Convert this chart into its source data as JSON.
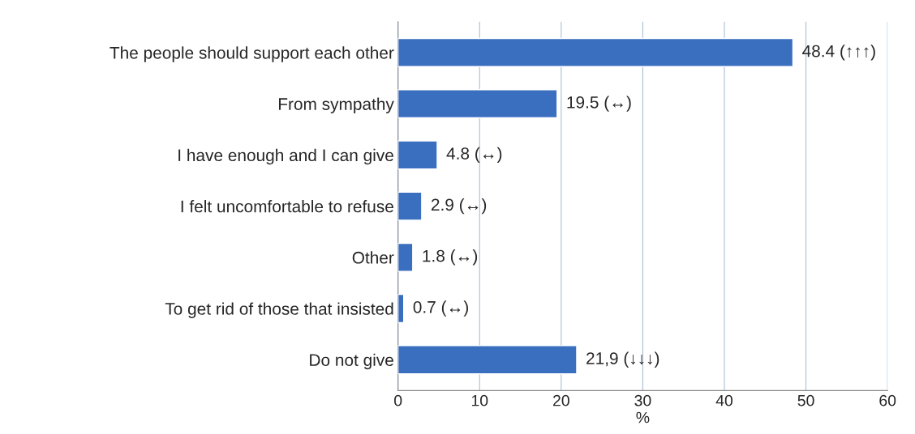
{
  "chart_data": {
    "type": "bar",
    "orientation": "horizontal",
    "categories": [
      "The people should support each other",
      "From sympathy",
      "I have enough and I can give",
      "I felt uncomfortable to refuse",
      "Other",
      "To get rid of those that insisted",
      "Do not give"
    ],
    "values": [
      48.4,
      19.5,
      4.8,
      2.9,
      1.8,
      0.7,
      21.9
    ],
    "value_labels": [
      "48.4 (↑↑↑)",
      "19.5 (↔)",
      "4.8 (↔)",
      "2.9 (↔)",
      "1.8 (↔)",
      "0.7 (↔)",
      "21,9 (↓↓↓)"
    ],
    "color": "#3a6fc0",
    "xlabel": "%",
    "xlim": [
      0,
      60
    ],
    "xticks": [
      0,
      10,
      20,
      30,
      40,
      50,
      60
    ],
    "grid": "x",
    "legend": false
  }
}
